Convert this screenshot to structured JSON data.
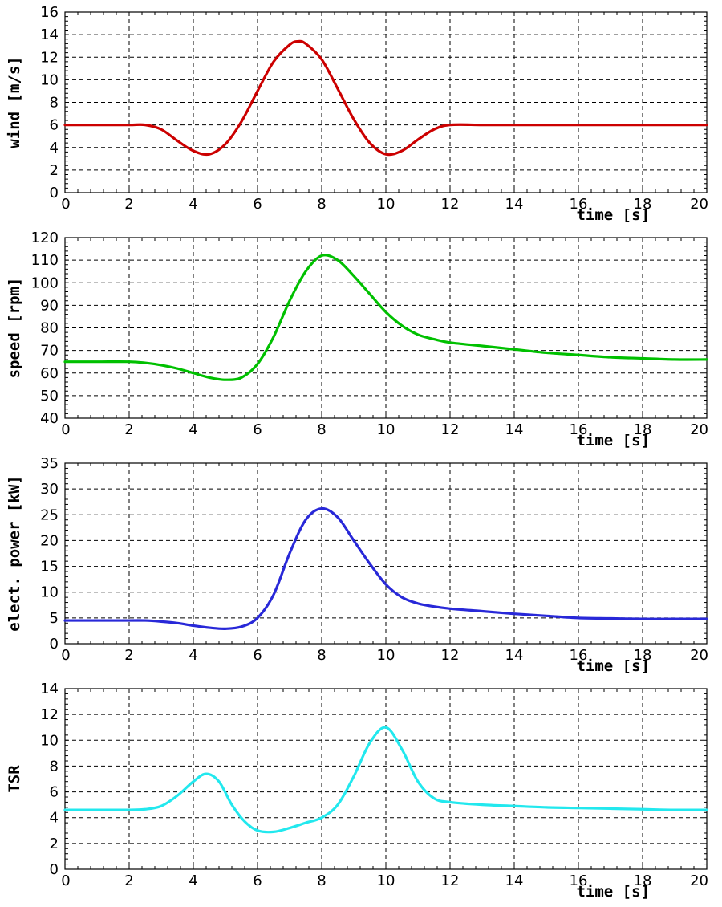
{
  "chart_data": [
    {
      "type": "line",
      "ylabel": "wind [m/s]",
      "xlabel": "time [s]",
      "xlim": [
        0,
        20
      ],
      "ylim": [
        0,
        16
      ],
      "xticks": [
        0,
        2,
        4,
        6,
        8,
        10,
        12,
        14,
        16,
        18,
        20
      ],
      "yticks": [
        0,
        2,
        4,
        6,
        8,
        10,
        12,
        14,
        16
      ],
      "grid": true,
      "series": [
        {
          "color": "#cc0000",
          "x": [
            0,
            1,
            2,
            2.5,
            3,
            3.5,
            4,
            4.5,
            5,
            5.5,
            6,
            6.5,
            7,
            7.25,
            7.5,
            8,
            8.5,
            9,
            9.5,
            10,
            10.5,
            11,
            11.5,
            12,
            13,
            14,
            15,
            16,
            17,
            18,
            19,
            20
          ],
          "y": [
            6,
            6,
            6,
            6,
            5.6,
            4.6,
            3.7,
            3.4,
            4.3,
            6.3,
            9.0,
            11.6,
            13.1,
            13.4,
            13.2,
            11.8,
            9.2,
            6.5,
            4.4,
            3.4,
            3.7,
            4.7,
            5.6,
            6,
            6,
            6,
            6,
            6,
            6,
            6,
            6,
            6
          ]
        }
      ]
    },
    {
      "type": "line",
      "ylabel": "speed [rpm]",
      "xlabel": "time [s]",
      "xlim": [
        0,
        20
      ],
      "ylim": [
        40,
        120
      ],
      "xticks": [
        0,
        2,
        4,
        6,
        8,
        10,
        12,
        14,
        16,
        18,
        20
      ],
      "yticks": [
        40,
        50,
        60,
        70,
        80,
        90,
        100,
        110,
        120
      ],
      "grid": true,
      "series": [
        {
          "color": "#00c000",
          "x": [
            0,
            1,
            2,
            2.5,
            3,
            3.5,
            4,
            4.5,
            5,
            5.5,
            6,
            6.5,
            7,
            7.5,
            8,
            8.5,
            9,
            9.5,
            10,
            10.5,
            11,
            11.5,
            12,
            13,
            14,
            15,
            16,
            17,
            18,
            19,
            20
          ],
          "y": [
            65,
            65,
            65,
            64.5,
            63.5,
            62,
            60,
            58,
            57,
            58,
            64,
            76,
            92,
            105,
            112,
            110,
            103,
            95,
            87,
            81,
            77,
            75,
            73.5,
            72,
            70.5,
            69,
            68,
            67,
            66.5,
            66,
            66
          ]
        }
      ]
    },
    {
      "type": "line",
      "ylabel": "elect. power [kW]",
      "xlabel": "time [s]",
      "xlim": [
        0,
        20
      ],
      "ylim": [
        0,
        35
      ],
      "xticks": [
        0,
        2,
        4,
        6,
        8,
        10,
        12,
        14,
        16,
        18,
        20
      ],
      "yticks": [
        0,
        5,
        10,
        15,
        20,
        25,
        30,
        35
      ],
      "grid": true,
      "series": [
        {
          "color": "#2828d8",
          "x": [
            0,
            1,
            2,
            2.5,
            3,
            3.5,
            4,
            4.5,
            5,
            5.5,
            6,
            6.5,
            7,
            7.5,
            8,
            8.5,
            9,
            9.5,
            10,
            10.5,
            11,
            11.5,
            12,
            13,
            14,
            15,
            16,
            17,
            18,
            19,
            20
          ],
          "y": [
            4.5,
            4.5,
            4.5,
            4.5,
            4.3,
            4.0,
            3.5,
            3.1,
            2.9,
            3.3,
            5.0,
            9.5,
            17.5,
            24.0,
            26.2,
            24.5,
            20.0,
            15.5,
            11.5,
            9.0,
            7.8,
            7.2,
            6.8,
            6.3,
            5.8,
            5.4,
            5.0,
            4.9,
            4.8,
            4.8,
            4.8
          ]
        }
      ]
    },
    {
      "type": "line",
      "ylabel": "TSR",
      "xlabel": "time [s]",
      "xlim": [
        0,
        20
      ],
      "ylim": [
        0,
        14
      ],
      "xticks": [
        0,
        2,
        4,
        6,
        8,
        10,
        12,
        14,
        16,
        18,
        20
      ],
      "yticks": [
        0,
        2,
        4,
        6,
        8,
        10,
        12,
        14
      ],
      "grid": true,
      "series": [
        {
          "color": "#22e8ee",
          "x": [
            0,
            1,
            2,
            2.5,
            3,
            3.5,
            4,
            4.4,
            4.8,
            5.2,
            5.6,
            6,
            6.5,
            7,
            7.5,
            8,
            8.5,
            9,
            9.5,
            10,
            10.5,
            11,
            11.5,
            12,
            13,
            14,
            15,
            16,
            17,
            18,
            19,
            20
          ],
          "y": [
            4.6,
            4.6,
            4.6,
            4.65,
            4.9,
            5.7,
            6.8,
            7.4,
            6.8,
            5.0,
            3.7,
            3.0,
            2.9,
            3.2,
            3.6,
            4.0,
            5.0,
            7.2,
            9.8,
            11.0,
            9.3,
            6.8,
            5.5,
            5.2,
            5.0,
            4.9,
            4.8,
            4.75,
            4.7,
            4.65,
            4.6,
            4.6
          ]
        }
      ]
    }
  ]
}
